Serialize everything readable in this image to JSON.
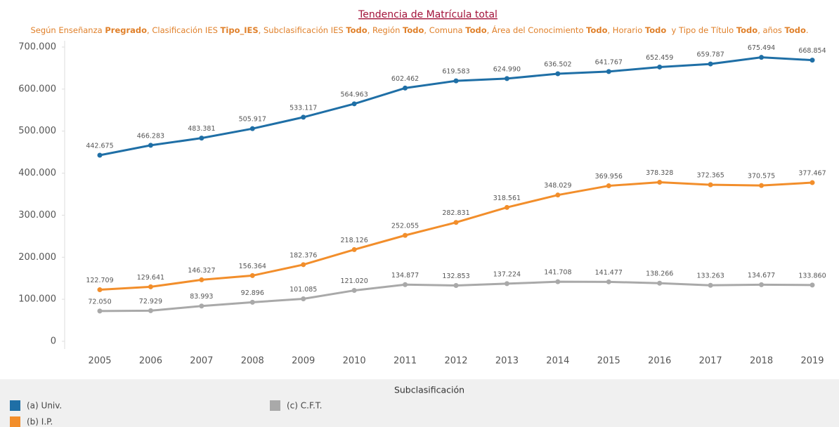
{
  "chart_data": {
    "type": "line",
    "title": "Tendencia de Matrícula total",
    "subtitle": [
      {
        "text": "Según Enseñanza ",
        "bold": false
      },
      {
        "text": "Pregrado",
        "bold": true
      },
      {
        "text": ", Clasificación IES ",
        "bold": false
      },
      {
        "text": "Tipo_IES",
        "bold": true
      },
      {
        "text": ", Subclasificación IES ",
        "bold": false
      },
      {
        "text": "Todo",
        "bold": true
      },
      {
        "text": ", Región ",
        "bold": false
      },
      {
        "text": "Todo",
        "bold": true
      },
      {
        "text": ", Comuna ",
        "bold": false
      },
      {
        "text": "Todo",
        "bold": true
      },
      {
        "text": ", Área del Conocimiento ",
        "bold": false
      },
      {
        "text": "Todo",
        "bold": true
      },
      {
        "text": ", Horario ",
        "bold": false
      },
      {
        "text": "Todo",
        "bold": true
      },
      {
        "text": "  y Tipo de Título ",
        "bold": false
      },
      {
        "text": "Todo",
        "bold": true
      },
      {
        "text": ", años ",
        "bold": false
      },
      {
        "text": "Todo",
        "bold": true
      },
      {
        "text": ".",
        "bold": false
      }
    ],
    "categories": [
      "2005",
      "2006",
      "2007",
      "2008",
      "2009",
      "2010",
      "2011",
      "2012",
      "2013",
      "2014",
      "2015",
      "2016",
      "2017",
      "2018",
      "2019"
    ],
    "legend_title": "Subclasificación",
    "series": [
      {
        "name": "(a) Univ.",
        "color": "#1f6fa6",
        "values": [
          442675,
          466283,
          483381,
          505917,
          533117,
          564963,
          602462,
          619583,
          624990,
          636502,
          641767,
          652459,
          659787,
          675494,
          668854
        ],
        "value_labels": [
          "442.675",
          "466.283",
          "483.381",
          "505.917",
          "533.117",
          "564.963",
          "602.462",
          "619.583",
          "624.990",
          "636.502",
          "641.767",
          "652.459",
          "659.787",
          "675.494",
          "668.854"
        ]
      },
      {
        "name": "(b) I.P.",
        "color": "#f28e2b",
        "values": [
          122709,
          129641,
          146327,
          156364,
          182376,
          218126,
          252055,
          282831,
          318561,
          348029,
          369956,
          378328,
          372365,
          370575,
          377467
        ],
        "value_labels": [
          "122.709",
          "129.641",
          "146.327",
          "156.364",
          "182.376",
          "218.126",
          "252.055",
          "282.831",
          "318.561",
          "348.029",
          "369.956",
          "378.328",
          "372.365",
          "370.575",
          "377.467"
        ]
      },
      {
        "name": "(c) C.F.T.",
        "color": "#a9a9a9",
        "values": [
          72050,
          72929,
          83993,
          92896,
          101085,
          121020,
          134877,
          132853,
          137224,
          141708,
          141477,
          138266,
          133263,
          134677,
          133860
        ],
        "value_labels": [
          "72.050",
          "72.929",
          "83.993",
          "92.896",
          "101.085",
          "121.020",
          "134.877",
          "132.853",
          "137.224",
          "141.708",
          "141.477",
          "138.266",
          "133.263",
          "134.677",
          "133.860"
        ]
      }
    ],
    "ylim": [
      0,
      700000
    ],
    "yticks": [
      0,
      {
        "value": 100000,
        "label": "100.000"
      },
      {
        "value": 200000,
        "label": "200.000"
      },
      {
        "value": 300000,
        "label": "300.000"
      },
      {
        "value": 400000,
        "label": "400.000"
      },
      {
        "value": 500000,
        "label": "500.000"
      },
      {
        "value": 600000,
        "label": "600.000"
      },
      {
        "value": 700000,
        "label": "700.000"
      }
    ],
    "grid": false
  }
}
